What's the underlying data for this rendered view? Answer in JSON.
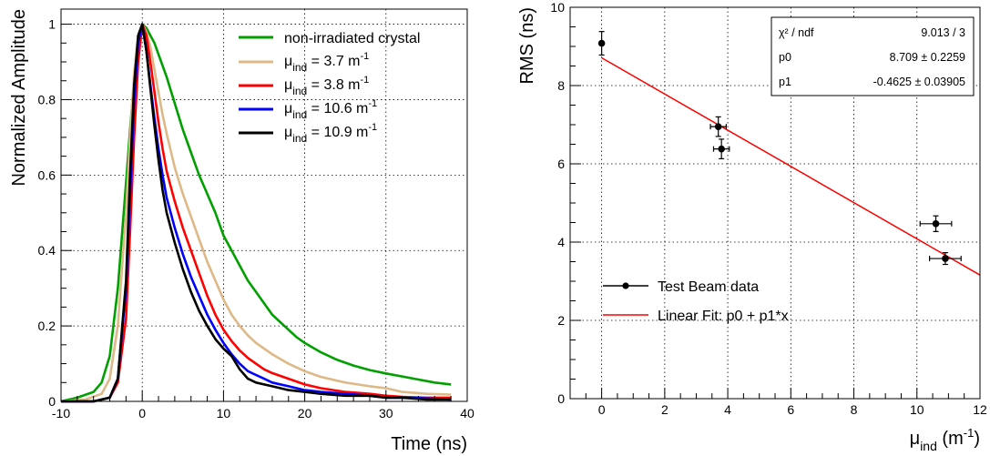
{
  "chart_data": [
    {
      "type": "line",
      "xlabel": "Time (ns)",
      "ylabel": "Normalized Amplitude",
      "xlim": [
        -10,
        40
      ],
      "ylim": [
        0,
        1.04
      ],
      "xticks": [
        "-10",
        "0",
        "10",
        "20",
        "30",
        "40"
      ],
      "yticks": [
        "0",
        "0.2",
        "0.4",
        "0.6",
        "0.8",
        "1"
      ],
      "grid": true,
      "legend_position": "top-right",
      "series": [
        {
          "name": "non-irradiated crystal",
          "color": "#00a000",
          "x": [
            -10,
            -8,
            -6,
            -5,
            -4,
            -3,
            -2,
            -1.5,
            -1,
            -0.5,
            0,
            0.5,
            1,
            1.5,
            2,
            3,
            4,
            5,
            6,
            7,
            8,
            9,
            10,
            11,
            12,
            13,
            14,
            15,
            16,
            17,
            18,
            19,
            20,
            22,
            24,
            26,
            28,
            30,
            32,
            34,
            36,
            38
          ],
          "y": [
            0.0,
            0.01,
            0.025,
            0.05,
            0.12,
            0.3,
            0.58,
            0.72,
            0.85,
            0.95,
            1.0,
            0.99,
            0.97,
            0.95,
            0.92,
            0.86,
            0.79,
            0.72,
            0.66,
            0.6,
            0.55,
            0.5,
            0.44,
            0.4,
            0.36,
            0.32,
            0.29,
            0.26,
            0.23,
            0.21,
            0.19,
            0.17,
            0.155,
            0.13,
            0.11,
            0.095,
            0.083,
            0.074,
            0.066,
            0.058,
            0.05,
            0.045
          ]
        },
        {
          "name": "μ_ind = 3.7 m^-1",
          "label_main": "μ",
          "label_sub": "ind",
          "label_rest": " = 3.7 m",
          "label_sup": "-1",
          "color": "#deb887",
          "x": [
            -10,
            -7,
            -5,
            -4,
            -3,
            -2,
            -1.5,
            -1,
            -0.5,
            0,
            0.5,
            1,
            1.5,
            2,
            2.5,
            3,
            4,
            5,
            6,
            7,
            8,
            9,
            10,
            11,
            12,
            13,
            14,
            15,
            16,
            18,
            20,
            22,
            25,
            28,
            30,
            32,
            35,
            38
          ],
          "y": [
            0.0,
            0.005,
            0.02,
            0.06,
            0.2,
            0.5,
            0.7,
            0.87,
            0.97,
            1.0,
            0.98,
            0.94,
            0.88,
            0.82,
            0.76,
            0.71,
            0.62,
            0.55,
            0.49,
            0.43,
            0.37,
            0.32,
            0.27,
            0.23,
            0.2,
            0.175,
            0.155,
            0.14,
            0.125,
            0.1,
            0.08,
            0.065,
            0.05,
            0.04,
            0.035,
            0.025,
            0.02,
            0.018
          ]
        },
        {
          "name": "μ_ind = 3.8 m^-1",
          "label_main": "μ",
          "label_sub": "ind",
          "label_rest": " = 3.8 m",
          "label_sup": "-1",
          "color": "#ff0000",
          "x": [
            -10,
            -6,
            -4,
            -3,
            -2,
            -1.5,
            -1,
            -0.5,
            0,
            0.5,
            1,
            1.5,
            2,
            2.5,
            3,
            4,
            5,
            6,
            7,
            8,
            9,
            10,
            11,
            12,
            13,
            14,
            15,
            16,
            18,
            20,
            22,
            25,
            28,
            30,
            32,
            35,
            38
          ],
          "y": [
            0.0,
            0.0,
            0.01,
            0.05,
            0.22,
            0.45,
            0.7,
            0.9,
            1.0,
            0.97,
            0.9,
            0.82,
            0.74,
            0.67,
            0.61,
            0.53,
            0.46,
            0.4,
            0.34,
            0.28,
            0.23,
            0.19,
            0.16,
            0.135,
            0.115,
            0.1,
            0.085,
            0.075,
            0.06,
            0.045,
            0.035,
            0.025,
            0.02,
            0.015,
            0.012,
            0.01,
            0.01
          ]
        },
        {
          "name": "μ_ind = 10.6 m^-1",
          "label_main": "μ",
          "label_sub": "ind",
          "label_rest": " = 10.6 m",
          "label_sup": "-1",
          "color": "#0000ff",
          "x": [
            -10,
            -6,
            -4,
            -3,
            -2,
            -1.5,
            -1,
            -0.5,
            0,
            0.5,
            1,
            1.5,
            2,
            2.5,
            3,
            4,
            5,
            6,
            7,
            8,
            9,
            10,
            11,
            12,
            13,
            14,
            15,
            16,
            18,
            20,
            22,
            25,
            28,
            30,
            32,
            35,
            38
          ],
          "y": [
            0.0,
            0.0,
            0.01,
            0.06,
            0.3,
            0.55,
            0.8,
            0.95,
            1.0,
            0.93,
            0.84,
            0.75,
            0.67,
            0.6,
            0.54,
            0.46,
            0.39,
            0.33,
            0.28,
            0.23,
            0.19,
            0.155,
            0.125,
            0.1,
            0.08,
            0.07,
            0.06,
            0.05,
            0.04,
            0.03,
            0.025,
            0.02,
            0.015,
            0.01,
            0.01,
            0.008,
            0.005
          ]
        },
        {
          "name": "μ_ind = 10.9 m^-1",
          "label_main": "μ",
          "label_sub": "ind",
          "label_rest": " = 10.9 m",
          "label_sup": "-1",
          "color": "#000000",
          "x": [
            -10,
            -6,
            -4,
            -3,
            -2,
            -1.5,
            -1,
            -0.5,
            0,
            0.5,
            1,
            1.5,
            2,
            2.5,
            3,
            4,
            5,
            6,
            7,
            8,
            9,
            10,
            11,
            12,
            13,
            14,
            15,
            16,
            18,
            20,
            22,
            25,
            28,
            30,
            32,
            35,
            38
          ],
          "y": [
            0.0,
            0.0,
            0.01,
            0.06,
            0.32,
            0.6,
            0.84,
            0.97,
            1.0,
            0.93,
            0.83,
            0.73,
            0.64,
            0.56,
            0.5,
            0.42,
            0.35,
            0.29,
            0.24,
            0.2,
            0.165,
            0.14,
            0.12,
            0.085,
            0.06,
            0.05,
            0.045,
            0.04,
            0.03,
            0.025,
            0.02,
            0.015,
            0.015,
            0.01,
            0.01,
            0.005,
            0.005
          ]
        }
      ]
    },
    {
      "type": "scatter",
      "xlabel_main": "μ",
      "xlabel_sub": "ind",
      "xlabel_rest": " (m",
      "xlabel_sup": "-1",
      "xlabel_end": ")",
      "ylabel": "RMS (ns)",
      "xlim": [
        -1,
        12
      ],
      "ylim": [
        0,
        10
      ],
      "xticks": [
        "0",
        "2",
        "4",
        "6",
        "8",
        "10",
        "12"
      ],
      "yticks": [
        "0",
        "2",
        "4",
        "6",
        "8",
        "10"
      ],
      "grid": true,
      "legend_position": "bottom-left",
      "series": [
        {
          "name": "Test Beam data",
          "color": "#000000",
          "points": [
            {
              "x": 0.0,
              "y": 9.08,
              "xerr": 0.0,
              "yerr": 0.3
            },
            {
              "x": 3.7,
              "y": 6.95,
              "xerr": 0.25,
              "yerr": 0.25
            },
            {
              "x": 3.8,
              "y": 6.38,
              "xerr": 0.25,
              "yerr": 0.25
            },
            {
              "x": 10.6,
              "y": 4.47,
              "xerr": 0.5,
              "yerr": 0.2
            },
            {
              "x": 10.9,
              "y": 3.58,
              "xerr": 0.5,
              "yerr": 0.15
            }
          ]
        },
        {
          "name": "Linear Fit: p0 + p1*x",
          "color": "#ff0000",
          "fit": {
            "p0": 8.709,
            "p1": -0.4625,
            "x_from": 0,
            "x_to": 12
          }
        }
      ],
      "stats": [
        {
          "label": "χ² / ndf",
          "value": "9.013 / 3"
        },
        {
          "label": "p0",
          "value": "8.709 ± 0.2259"
        },
        {
          "label": "p1",
          "value": "-0.4625 ± 0.03905"
        }
      ]
    }
  ]
}
